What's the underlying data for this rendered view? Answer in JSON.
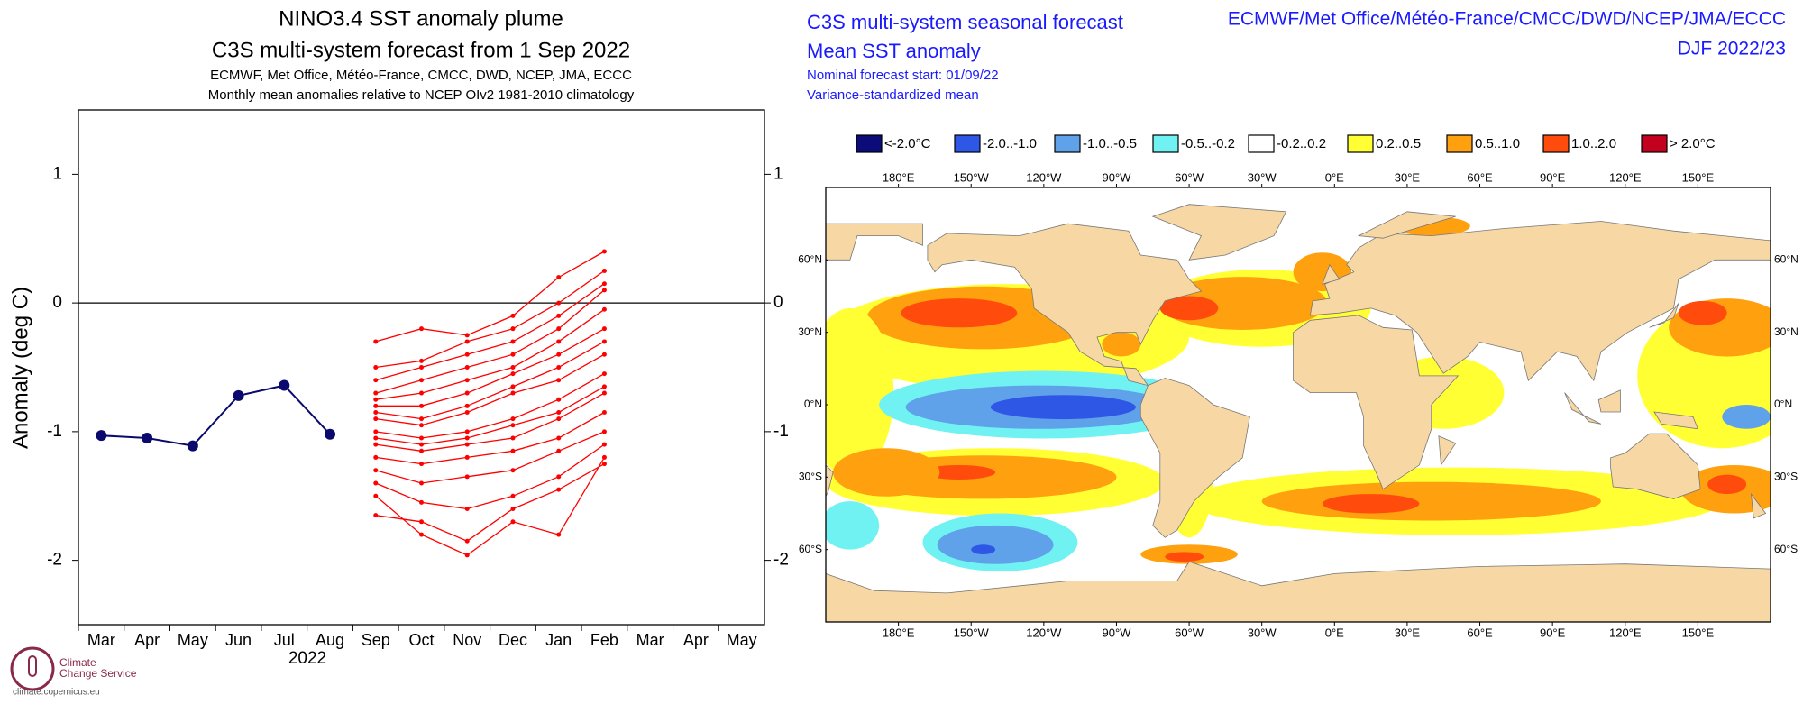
{
  "chart_data": [
    {
      "type": "line",
      "title": "NINO3.4 SST anomaly plume",
      "subtitle": "C3S multi-system forecast from 1 Sep 2022",
      "notes": [
        "ECMWF, Met Office, Météo-France, CMCC, DWD, NCEP, JMA, ECCC",
        "Monthly mean anomalies relative to NCEP OIv2 1981-2010 climatology"
      ],
      "y_label": "Anomaly (deg C)",
      "x_year": "2022",
      "categories": [
        "Mar",
        "Apr",
        "May",
        "Jun",
        "Jul",
        "Aug",
        "Sep",
        "Oct",
        "Nov",
        "Dec",
        "Jan",
        "Feb",
        "Mar",
        "Apr",
        "May"
      ],
      "ylim": [
        -2.5,
        1.5
      ],
      "yticks": [
        -2,
        -1,
        0,
        1
      ],
      "hline": 0,
      "series": [
        {
          "color": "#0a0a6e",
          "marker": true,
          "values": [
            -1.03,
            -1.05,
            -1.11,
            -0.72,
            -0.64,
            -1.02,
            null,
            null,
            null,
            null,
            null,
            null,
            null,
            null,
            null
          ]
        },
        {
          "color": "#ff0000",
          "values": [
            null,
            null,
            null,
            null,
            null,
            null,
            -0.3,
            -0.2,
            -0.25,
            -0.1,
            0.2,
            0.4,
            null,
            null,
            null
          ]
        },
        {
          "color": "#ff0000",
          "values": [
            null,
            null,
            null,
            null,
            null,
            null,
            -0.5,
            -0.45,
            -0.3,
            -0.2,
            0.0,
            0.25,
            null,
            null,
            null
          ]
        },
        {
          "color": "#ff0000",
          "values": [
            null,
            null,
            null,
            null,
            null,
            null,
            -0.6,
            -0.5,
            -0.4,
            -0.3,
            -0.1,
            0.15,
            null,
            null,
            null
          ]
        },
        {
          "color": "#ff0000",
          "values": [
            null,
            null,
            null,
            null,
            null,
            null,
            -0.7,
            -0.6,
            -0.5,
            -0.4,
            -0.2,
            0.1,
            null,
            null,
            null
          ]
        },
        {
          "color": "#ff0000",
          "values": [
            null,
            null,
            null,
            null,
            null,
            null,
            -0.75,
            -0.7,
            -0.6,
            -0.5,
            -0.3,
            -0.05,
            null,
            null,
            null
          ]
        },
        {
          "color": "#ff0000",
          "values": [
            null,
            null,
            null,
            null,
            null,
            null,
            -0.8,
            -0.8,
            -0.7,
            -0.55,
            -0.4,
            -0.2,
            null,
            null,
            null
          ]
        },
        {
          "color": "#ff0000",
          "values": [
            null,
            null,
            null,
            null,
            null,
            null,
            -0.85,
            -0.9,
            -0.8,
            -0.65,
            -0.5,
            -0.3,
            null,
            null,
            null
          ]
        },
        {
          "color": "#ff0000",
          "values": [
            null,
            null,
            null,
            null,
            null,
            null,
            -0.9,
            -0.95,
            -0.85,
            -0.7,
            -0.6,
            -0.4,
            null,
            null,
            null
          ]
        },
        {
          "color": "#ff0000",
          "values": [
            null,
            null,
            null,
            null,
            null,
            null,
            -1.0,
            -1.05,
            -1.0,
            -0.9,
            -0.75,
            -0.55,
            null,
            null,
            null
          ]
        },
        {
          "color": "#ff0000",
          "values": [
            null,
            null,
            null,
            null,
            null,
            null,
            -1.05,
            -1.1,
            -1.05,
            -0.95,
            -0.85,
            -0.65,
            null,
            null,
            null
          ]
        },
        {
          "color": "#ff0000",
          "values": [
            null,
            null,
            null,
            null,
            null,
            null,
            -1.1,
            -1.15,
            -1.1,
            -1.05,
            -0.9,
            -0.7,
            null,
            null,
            null
          ]
        },
        {
          "color": "#ff0000",
          "values": [
            null,
            null,
            null,
            null,
            null,
            null,
            -1.2,
            -1.25,
            -1.2,
            -1.15,
            -1.05,
            -0.85,
            null,
            null,
            null
          ]
        },
        {
          "color": "#ff0000",
          "values": [
            null,
            null,
            null,
            null,
            null,
            null,
            -1.3,
            -1.4,
            -1.35,
            -1.3,
            -1.15,
            -1.0,
            null,
            null,
            null
          ]
        },
        {
          "color": "#ff0000",
          "values": [
            null,
            null,
            null,
            null,
            null,
            null,
            -1.4,
            -1.55,
            -1.6,
            -1.5,
            -1.35,
            -1.1,
            null,
            null,
            null
          ]
        },
        {
          "color": "#ff0000",
          "values": [
            null,
            null,
            null,
            null,
            null,
            null,
            -1.5,
            -1.8,
            -1.96,
            -1.7,
            -1.8,
            -1.2,
            null,
            null,
            null
          ]
        },
        {
          "color": "#ff0000",
          "values": [
            null,
            null,
            null,
            null,
            null,
            null,
            -1.65,
            -1.7,
            -1.85,
            -1.6,
            -1.45,
            -1.25,
            null,
            null,
            null
          ]
        }
      ]
    },
    {
      "type": "map",
      "title": "C3S multi-system seasonal forecast",
      "subtitle": "Mean SST anomaly",
      "notes": [
        "Nominal forecast start: 01/09/22",
        "Variance-standardized mean"
      ],
      "source": "ECMWF/Met Office/Météo-France/CMCC/DWD/NCEP/JMA/ECCC",
      "period": "DJF 2022/23",
      "legend": [
        {
          "label": "<-2.0°C",
          "color": "#0b0b7a"
        },
        {
          "label": "-2.0..-1.0",
          "color": "#2f57e6"
        },
        {
          "label": "-1.0..-0.5",
          "color": "#5fa2ea"
        },
        {
          "label": "-0.5..-0.2",
          "color": "#70f2f2"
        },
        {
          "label": "-0.2..0.2",
          "color": "#ffffff"
        },
        {
          "label": "0.2..0.5",
          "color": "#ffff33"
        },
        {
          "label": "0.5..1.0",
          "color": "#ffa00f"
        },
        {
          "label": "1.0..2.0",
          "color": "#ff4c0c"
        },
        {
          "label": "> 2.0°C",
          "color": "#c4001f"
        }
      ],
      "land_color": "#f7d7a3",
      "xlim": [
        150,
        540
      ],
      "xticks": [
        {
          "value": 180,
          "label": "180°E"
        },
        {
          "value": 210,
          "label": "150°W"
        },
        {
          "value": 240,
          "label": "120°W"
        },
        {
          "value": 270,
          "label": "90°W"
        },
        {
          "value": 300,
          "label": "60°W"
        },
        {
          "value": 330,
          "label": "30°W"
        },
        {
          "value": 360,
          "label": "0°E"
        },
        {
          "value": 390,
          "label": "30°E"
        },
        {
          "value": 420,
          "label": "60°E"
        },
        {
          "value": 450,
          "label": "90°E"
        },
        {
          "value": 480,
          "label": "120°E"
        },
        {
          "value": 510,
          "label": "150°E"
        }
      ],
      "ylim": [
        -90,
        90
      ],
      "yticks": [
        {
          "value": 60,
          "label": "60°N"
        },
        {
          "value": 30,
          "label": "30°N"
        },
        {
          "value": 0,
          "label": "0°N"
        },
        {
          "value": -30,
          "label": "30°S"
        },
        {
          "value": -60,
          "label": "60°S"
        }
      ]
    }
  ],
  "logo": {
    "lines": [
      "Climate",
      "Change Service"
    ],
    "url": "climate.copernicus.eu"
  }
}
